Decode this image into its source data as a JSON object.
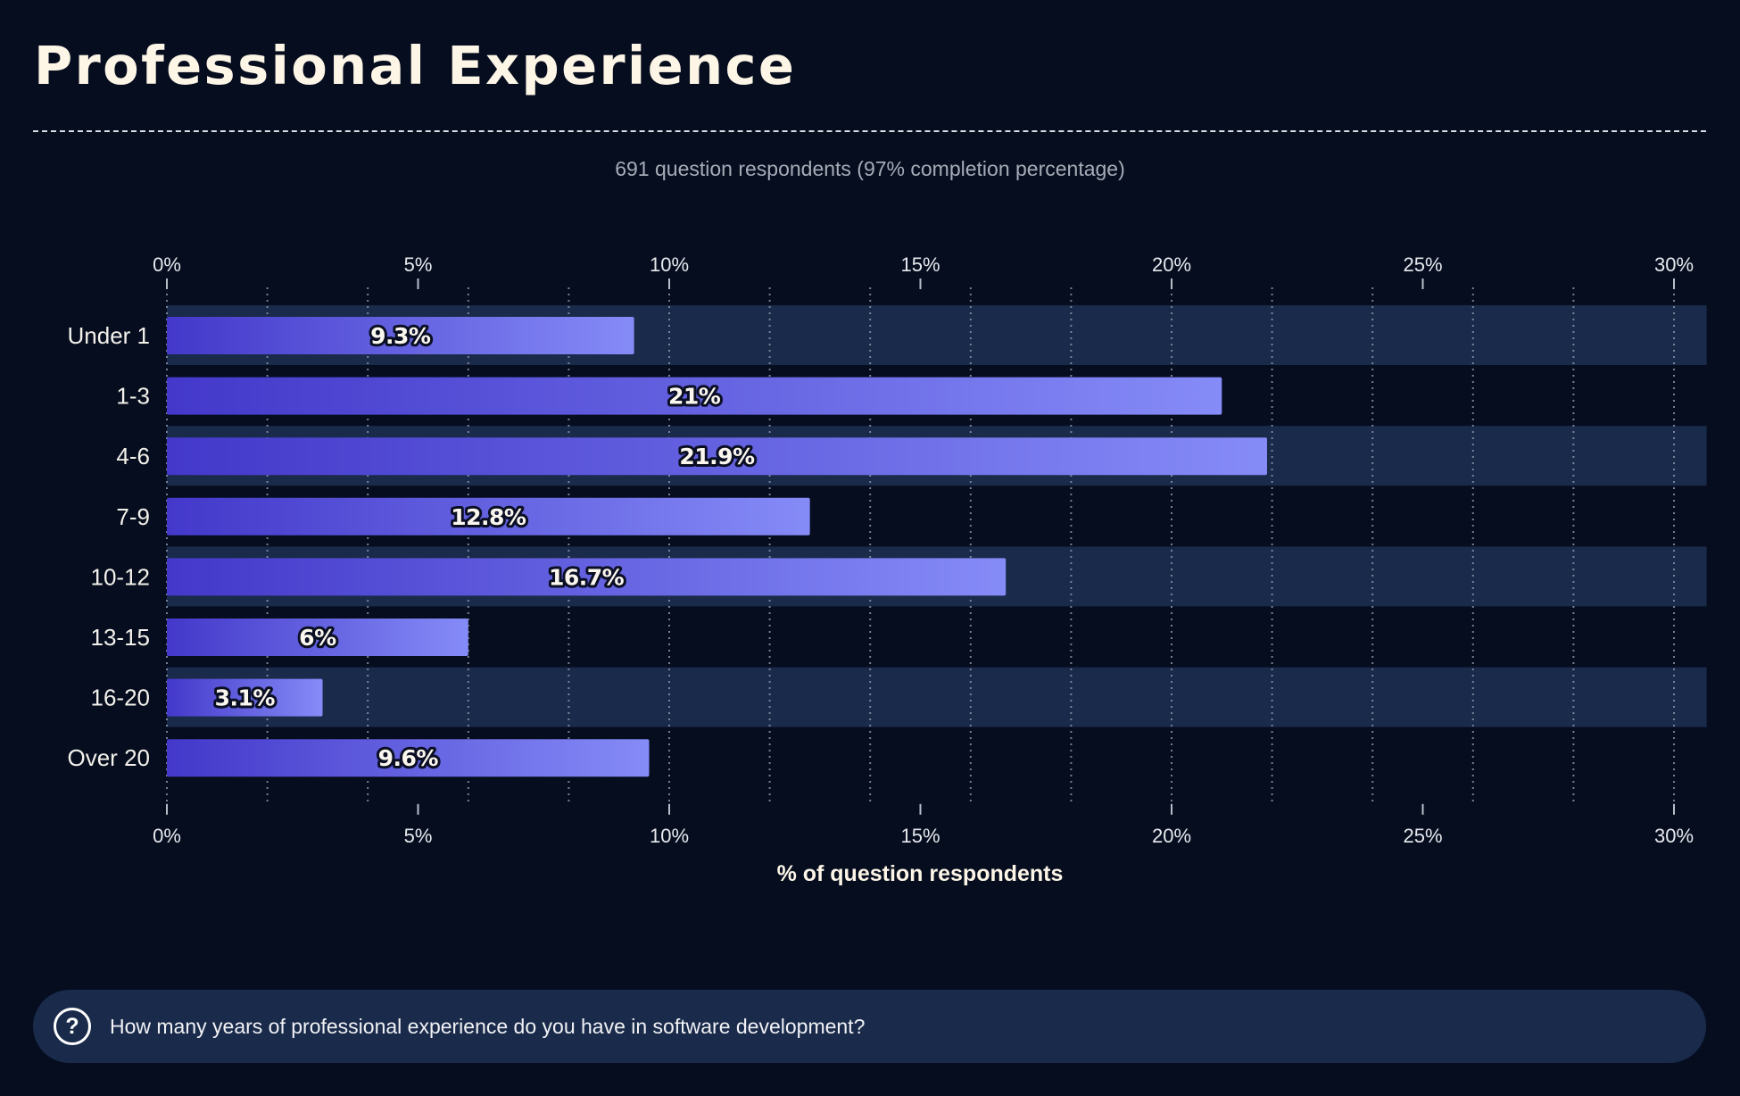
{
  "header": {
    "title": "Professional Experience",
    "subtitle": "691 question respondents (97% completion percentage)"
  },
  "colors": {
    "background": "#050d1f",
    "band": "#1a2a4a",
    "bar_start": "#4338ca",
    "bar_end": "#858bf7",
    "grid": "#8a94a8"
  },
  "chart_data": {
    "type": "bar",
    "orientation": "horizontal",
    "title": "Professional Experience",
    "subtitle": "691 question respondents (97% completion percentage)",
    "categories": [
      "Under 1",
      "1-3",
      "4-6",
      "7-9",
      "10-12",
      "13-15",
      "16-20",
      "Over 20"
    ],
    "values": [
      9.3,
      21,
      21.9,
      12.8,
      16.7,
      6,
      3.1,
      9.6
    ],
    "value_labels": [
      "9.3%",
      "21%",
      "21.9%",
      "12.8%",
      "16.7%",
      "6%",
      "3.1%",
      "9.6%"
    ],
    "xlabel": "% of question respondents",
    "ylabel": "",
    "xlim": [
      0,
      30.65
    ],
    "xticks": [
      0,
      5,
      10,
      15,
      20,
      25,
      30
    ],
    "xtick_labels": [
      "0%",
      "5%",
      "10%",
      "15%",
      "20%",
      "25%",
      "30%"
    ],
    "grid_step": 2,
    "grid": true,
    "axis_labels_position": "top-and-bottom",
    "legend": "none"
  },
  "question": {
    "icon": "question-circle-icon",
    "icon_glyph": "?",
    "text": "How many years of professional experience do you have in software development?"
  }
}
